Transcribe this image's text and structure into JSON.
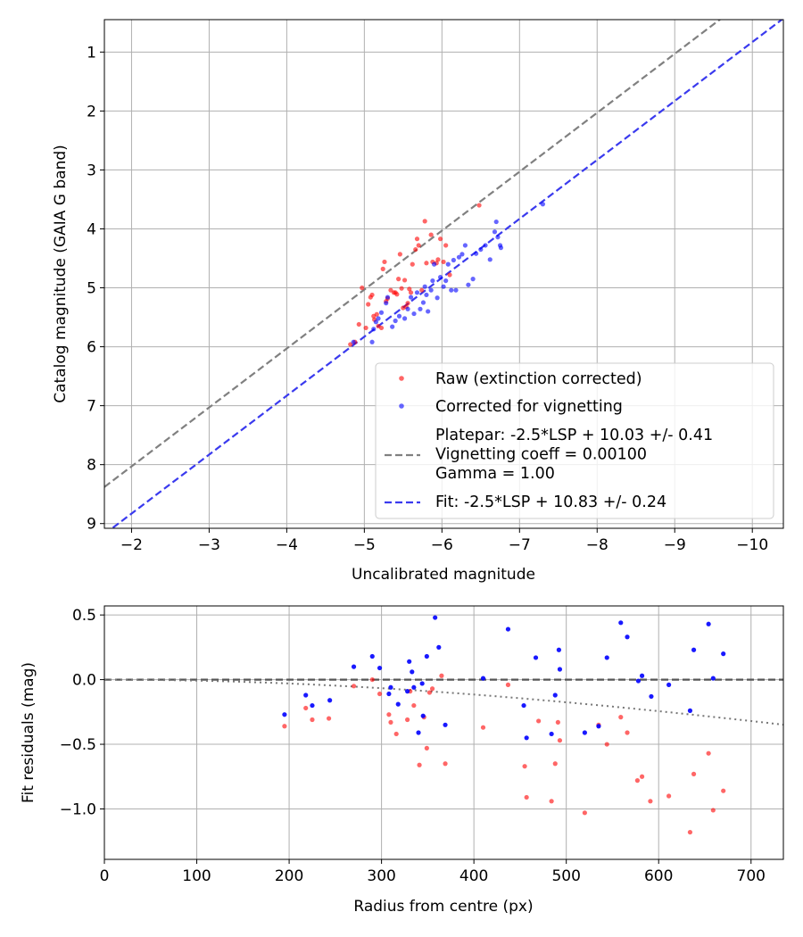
{
  "chart_data": [
    {
      "type": "scatter",
      "xlabel": "Uncalibrated magnitude",
      "ylabel": "Catalog magnitude (GAIA G band)",
      "xlim": [
        -1.65,
        -10.4
      ],
      "ylim": [
        9.08,
        0.45
      ],
      "x_inverted": true,
      "y_inverted": true,
      "grid": true,
      "xticks": [
        -2,
        -3,
        -4,
        -5,
        -6,
        -7,
        -8,
        -9,
        -10
      ],
      "xtick_labels": [
        "−2",
        "−3",
        "−4",
        "−5",
        "−6",
        "−7",
        "−8",
        "−9",
        "−10"
      ],
      "yticks": [
        1,
        2,
        3,
        4,
        5,
        6,
        7,
        8,
        9
      ],
      "ytick_labels": [
        "1",
        "2",
        "3",
        "4",
        "5",
        "6",
        "7",
        "8",
        "9"
      ],
      "legend_position": "lower-right",
      "series": [
        {
          "name": "Raw (extinction corrected)",
          "kind": "scatter",
          "color": "#ff0000",
          "alpha": 0.6,
          "points": [
            [
              -4.82,
              5.96
            ],
            [
              -4.88,
              5.92
            ],
            [
              -4.93,
              5.62
            ],
            [
              -4.97,
              5.0
            ],
            [
              -5.02,
              5.68
            ],
            [
              -5.05,
              5.28
            ],
            [
              -5.08,
              5.16
            ],
            [
              -5.1,
              5.12
            ],
            [
              -5.12,
              5.48
            ],
            [
              -5.13,
              5.54
            ],
            [
              -5.16,
              5.45
            ],
            [
              -5.18,
              5.65
            ],
            [
              -5.22,
              5.68
            ],
            [
              -5.24,
              4.68
            ],
            [
              -5.26,
              4.56
            ],
            [
              -5.28,
              5.23
            ],
            [
              -5.3,
              5.18
            ],
            [
              -5.34,
              5.04
            ],
            [
              -5.38,
              5.08
            ],
            [
              -5.4,
              5.08
            ],
            [
              -5.42,
              5.11
            ],
            [
              -5.44,
              4.85
            ],
            [
              -5.46,
              4.43
            ],
            [
              -5.48,
              5.01
            ],
            [
              -5.5,
              5.34
            ],
            [
              -5.52,
              4.87
            ],
            [
              -5.54,
              5.32
            ],
            [
              -5.56,
              5.26
            ],
            [
              -5.58,
              5.02
            ],
            [
              -5.6,
              5.08
            ],
            [
              -5.62,
              4.6
            ],
            [
              -5.66,
              4.35
            ],
            [
              -5.68,
              4.17
            ],
            [
              -5.7,
              4.28
            ],
            [
              -5.74,
              5.04
            ],
            [
              -5.78,
              3.87
            ],
            [
              -5.8,
              4.58
            ],
            [
              -5.86,
              4.1
            ],
            [
              -5.88,
              4.56
            ],
            [
              -5.93,
              4.58
            ],
            [
              -5.95,
              4.52
            ],
            [
              -5.98,
              4.17
            ],
            [
              -6.02,
              4.56
            ],
            [
              -6.05,
              4.28
            ],
            [
              -6.1,
              4.78
            ],
            [
              -6.48,
              3.6
            ]
          ]
        },
        {
          "name": "Corrected for vignetting",
          "kind": "scatter",
          "color": "#0000ff",
          "alpha": 0.6,
          "points": [
            [
              -4.86,
              5.92
            ],
            [
              -5.1,
              5.92
            ],
            [
              -5.12,
              5.7
            ],
            [
              -5.15,
              5.58
            ],
            [
              -5.18,
              5.52
            ],
            [
              -5.22,
              5.42
            ],
            [
              -5.28,
              5.26
            ],
            [
              -5.3,
              5.16
            ],
            [
              -5.36,
              5.66
            ],
            [
              -5.4,
              5.56
            ],
            [
              -5.45,
              5.48
            ],
            [
              -5.52,
              5.52
            ],
            [
              -5.56,
              5.36
            ],
            [
              -5.6,
              5.16
            ],
            [
              -5.64,
              5.44
            ],
            [
              -5.68,
              5.08
            ],
            [
              -5.72,
              5.36
            ],
            [
              -5.76,
              5.25
            ],
            [
              -5.78,
              4.98
            ],
            [
              -5.8,
              5.12
            ],
            [
              -5.82,
              5.4
            ],
            [
              -5.86,
              5.04
            ],
            [
              -5.88,
              4.88
            ],
            [
              -5.9,
              4.6
            ],
            [
              -5.94,
              5.17
            ],
            [
              -5.98,
              4.82
            ],
            [
              -6.02,
              4.98
            ],
            [
              -6.05,
              4.88
            ],
            [
              -6.08,
              4.6
            ],
            [
              -6.12,
              5.04
            ],
            [
              -6.15,
              4.53
            ],
            [
              -6.18,
              5.04
            ],
            [
              -6.22,
              4.48
            ],
            [
              -6.26,
              4.43
            ],
            [
              -6.3,
              4.28
            ],
            [
              -6.34,
              4.95
            ],
            [
              -6.4,
              4.85
            ],
            [
              -6.44,
              4.42
            ],
            [
              -6.5,
              4.35
            ],
            [
              -6.56,
              4.28
            ],
            [
              -6.62,
              4.52
            ],
            [
              -6.68,
              4.05
            ],
            [
              -6.7,
              3.88
            ],
            [
              -6.72,
              4.14
            ],
            [
              -6.75,
              4.28
            ],
            [
              -6.76,
              4.32
            ],
            [
              -7.3,
              3.58
            ]
          ]
        },
        {
          "name": "Platepar: -2.5*LSP + 10.03 +/- 0.41\nVignetting coeff = 0.00100\nGamma = 1.00",
          "kind": "line",
          "style": "dashed",
          "color": "#808080",
          "intercept": 10.03,
          "slope": 1.0
        },
        {
          "name": "Fit: -2.5*LSP + 10.83 +/- 0.24",
          "kind": "line",
          "style": "dashed",
          "color": "#3a3aee",
          "intercept": 10.83,
          "slope": 1.0
        }
      ]
    },
    {
      "type": "scatter",
      "xlabel": "Radius from centre (px)",
      "ylabel": "Fit residuals (mag)",
      "xlim": [
        0,
        735
      ],
      "ylim": [
        -1.39,
        0.57
      ],
      "grid": true,
      "xticks": [
        0,
        100,
        200,
        300,
        400,
        500,
        600,
        700
      ],
      "xtick_labels": [
        "0",
        "100",
        "200",
        "300",
        "400",
        "500",
        "600",
        "700"
      ],
      "yticks": [
        0.5,
        0.0,
        -0.5,
        -1.0
      ],
      "ytick_labels": [
        "0.5",
        "0.0",
        "−0.5",
        "−1.0"
      ],
      "series": [
        {
          "kind": "scatter",
          "color": "#ff0000",
          "alpha": 0.6,
          "points": [
            [
              195,
              -0.36
            ],
            [
              218,
              -0.22
            ],
            [
              225,
              -0.31
            ],
            [
              243,
              -0.3
            ],
            [
              270,
              -0.05
            ],
            [
              290,
              0.0
            ],
            [
              298,
              -0.11
            ],
            [
              308,
              -0.27
            ],
            [
              310,
              -0.33
            ],
            [
              316,
              -0.42
            ],
            [
              328,
              -0.31
            ],
            [
              331,
              -0.09
            ],
            [
              335,
              -0.2
            ],
            [
              341,
              -0.66
            ],
            [
              346,
              -0.29
            ],
            [
              349,
              -0.53
            ],
            [
              352,
              -0.1
            ],
            [
              355,
              -0.07
            ],
            [
              365,
              0.03
            ],
            [
              369,
              -0.65
            ],
            [
              410,
              -0.37
            ],
            [
              437,
              -0.04
            ],
            [
              455,
              -0.67
            ],
            [
              457,
              -0.91
            ],
            [
              470,
              -0.32
            ],
            [
              484,
              -0.94
            ],
            [
              488,
              -0.65
            ],
            [
              491,
              -0.33
            ],
            [
              493,
              -0.47
            ],
            [
              520,
              -1.03
            ],
            [
              535,
              -0.35
            ],
            [
              544,
              -0.5
            ],
            [
              559,
              -0.29
            ],
            [
              566,
              -0.41
            ],
            [
              577,
              -0.78
            ],
            [
              582,
              -0.75
            ],
            [
              591,
              -0.94
            ],
            [
              611,
              -0.9
            ],
            [
              634,
              -1.18
            ],
            [
              638,
              -0.73
            ],
            [
              654,
              -0.57
            ],
            [
              659,
              -1.01
            ],
            [
              670,
              -0.86
            ]
          ]
        },
        {
          "kind": "scatter",
          "color": "#0000ff",
          "alpha": 0.9,
          "points": [
            [
              195,
              -0.27
            ],
            [
              218,
              -0.12
            ],
            [
              225,
              -0.2
            ],
            [
              244,
              -0.16
            ],
            [
              270,
              0.1
            ],
            [
              290,
              0.18
            ],
            [
              298,
              0.09
            ],
            [
              308,
              -0.11
            ],
            [
              310,
              -0.06
            ],
            [
              318,
              -0.19
            ],
            [
              328,
              -0.09
            ],
            [
              330,
              0.14
            ],
            [
              333,
              0.06
            ],
            [
              335,
              -0.06
            ],
            [
              340,
              -0.41
            ],
            [
              344,
              -0.03
            ],
            [
              345,
              -0.28
            ],
            [
              349,
              0.18
            ],
            [
              358,
              0.48
            ],
            [
              362,
              0.25
            ],
            [
              369,
              -0.35
            ],
            [
              410,
              0.01
            ],
            [
              437,
              0.39
            ],
            [
              454,
              -0.2
            ],
            [
              457,
              -0.45
            ],
            [
              467,
              0.17
            ],
            [
              484,
              -0.42
            ],
            [
              488,
              -0.12
            ],
            [
              492,
              0.23
            ],
            [
              493,
              0.08
            ],
            [
              520,
              -0.41
            ],
            [
              535,
              -0.36
            ],
            [
              544,
              0.17
            ],
            [
              559,
              0.44
            ],
            [
              566,
              0.33
            ],
            [
              578,
              -0.01
            ],
            [
              582,
              0.03
            ],
            [
              592,
              -0.13
            ],
            [
              611,
              -0.04
            ],
            [
              634,
              -0.24
            ],
            [
              638,
              0.23
            ],
            [
              654,
              0.43
            ],
            [
              659,
              0.01
            ],
            [
              670,
              0.2
            ]
          ]
        },
        {
          "kind": "line",
          "style": "dashed",
          "color": "#555555",
          "y": 0.0
        },
        {
          "kind": "curve",
          "style": "dotted",
          "color": "#777777",
          "coeff": 0.001
        }
      ]
    }
  ]
}
